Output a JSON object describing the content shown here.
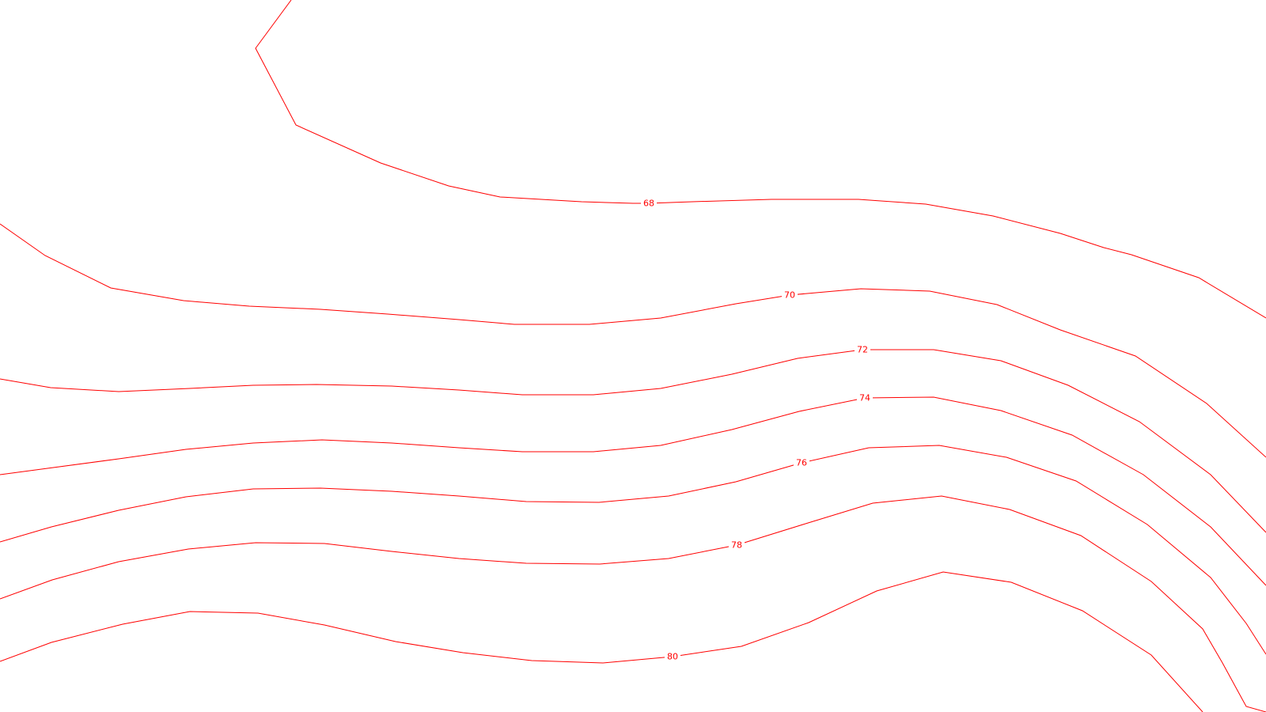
{
  "map": {
    "line_color": "#ff0000",
    "background_color": "#ffffff",
    "contours": [
      {
        "level": "68",
        "label": "68"
      },
      {
        "level": "70",
        "label": "70"
      },
      {
        "level": "72",
        "label": "72"
      },
      {
        "level": "74",
        "label": "74"
      },
      {
        "level": "76",
        "label": "76"
      },
      {
        "level": "78",
        "label": "78"
      },
      {
        "level": "80",
        "label": "80"
      }
    ]
  }
}
